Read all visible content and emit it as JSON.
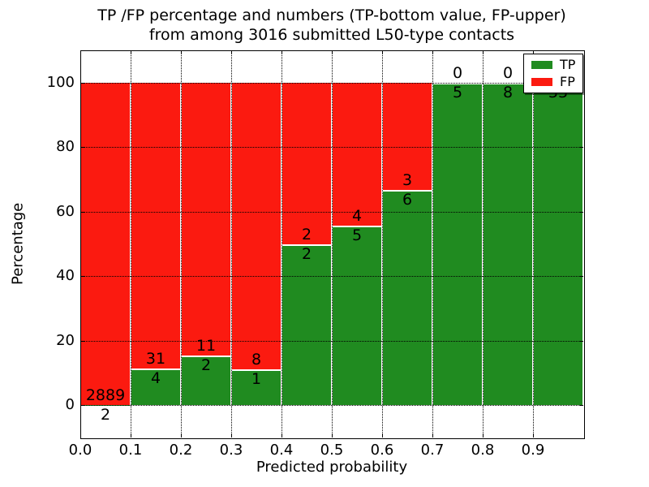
{
  "chart_data": {
    "type": "bar",
    "variant": "stacked-percentage",
    "title_lines": [
      "TP /FP percentage and numbers (TP-bottom value, FP-upper)",
      "from among 3016 submitted L50-type contacts"
    ],
    "xlabel": "Predicted probability",
    "ylabel": "Percentage",
    "x_tick_labels": [
      "0.0",
      "0.1",
      "0.2",
      "0.3",
      "0.4",
      "0.5",
      "0.6",
      "0.7",
      "0.8",
      "0.9"
    ],
    "y_tick_values": [
      0,
      20,
      40,
      60,
      80,
      100
    ],
    "xlim": [
      0,
      1
    ],
    "ylim": [
      -10,
      110
    ],
    "grid": true,
    "tp_color": "#208b20",
    "fp_color": "#fb1a10",
    "legend": {
      "position": "upper right",
      "items": [
        {
          "label": "TP",
          "key": "tp"
        },
        {
          "label": "FP",
          "key": "fp"
        }
      ]
    },
    "bins": [
      {
        "x0": 0.0,
        "x1": 0.1,
        "tp": 2,
        "fp": 2889
      },
      {
        "x0": 0.1,
        "x1": 0.2,
        "tp": 4,
        "fp": 31
      },
      {
        "x0": 0.2,
        "x1": 0.3,
        "tp": 2,
        "fp": 11
      },
      {
        "x0": 0.3,
        "x1": 0.4,
        "tp": 1,
        "fp": 8
      },
      {
        "x0": 0.4,
        "x1": 0.5,
        "tp": 2,
        "fp": 2
      },
      {
        "x0": 0.5,
        "x1": 0.6,
        "tp": 5,
        "fp": 4
      },
      {
        "x0": 0.6,
        "x1": 0.7,
        "tp": 6,
        "fp": 3
      },
      {
        "x0": 0.7,
        "x1": 0.8,
        "tp": 5,
        "fp": 0
      },
      {
        "x0": 0.8,
        "x1": 0.9,
        "tp": 8,
        "fp": 0
      },
      {
        "x0": 0.9,
        "x1": 1.0,
        "tp": 33,
        "fp": 0
      }
    ]
  }
}
